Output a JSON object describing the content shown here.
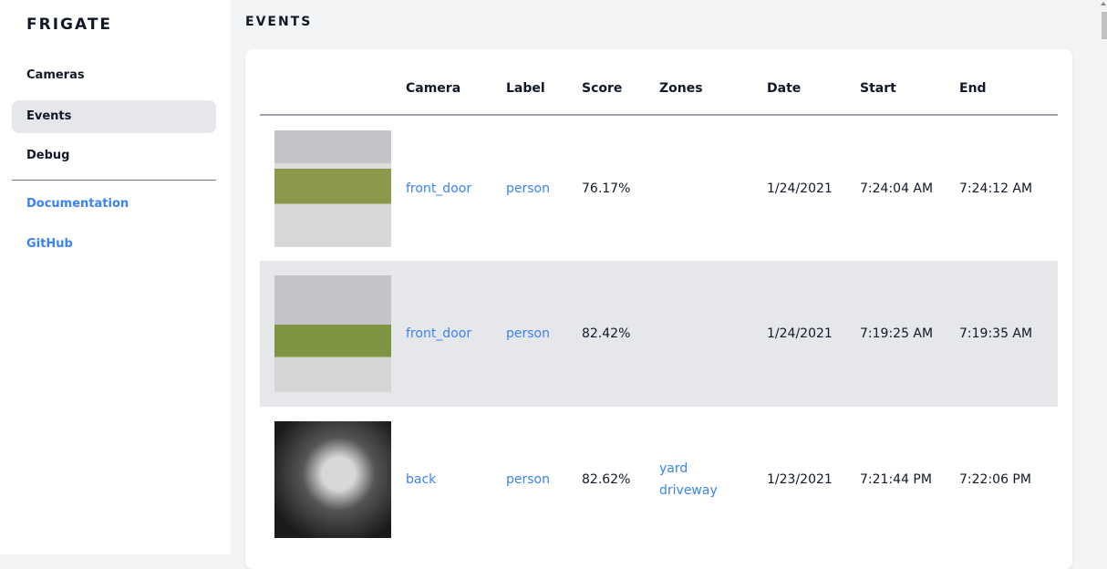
{
  "brand": "FRIGATE",
  "nav": {
    "items": [
      {
        "label": "Cameras"
      },
      {
        "label": "Events"
      },
      {
        "label": "Debug"
      }
    ],
    "links": [
      {
        "label": "Documentation"
      },
      {
        "label": "GitHub"
      }
    ]
  },
  "page_title": "EVENTS",
  "table": {
    "headers": [
      "",
      "Camera",
      "Label",
      "Score",
      "Zones",
      "Date",
      "Start",
      "End"
    ],
    "rows": [
      {
        "camera": "front_door",
        "label": "person",
        "score": "76.17%",
        "zones": [
          "",
          ""
        ],
        "date": "1/24/2021",
        "start": "7:24:04 AM",
        "end": "7:24:12 AM"
      },
      {
        "camera": "front_door",
        "label": "person",
        "score": "82.42%",
        "zones": [
          "",
          ""
        ],
        "date": "1/24/2021",
        "start": "7:19:25 AM",
        "end": "7:19:35 AM"
      },
      {
        "camera": "back",
        "label": "person",
        "score": "82.62%",
        "zones": [
          "yard",
          "driveway"
        ],
        "date": "1/23/2021",
        "start": "7:21:44 PM",
        "end": "7:22:06 PM"
      }
    ]
  },
  "colors": {
    "accent": "#3b82f6",
    "active_bg": "#e5e7eb",
    "page_bg": "#f3f4f6"
  }
}
